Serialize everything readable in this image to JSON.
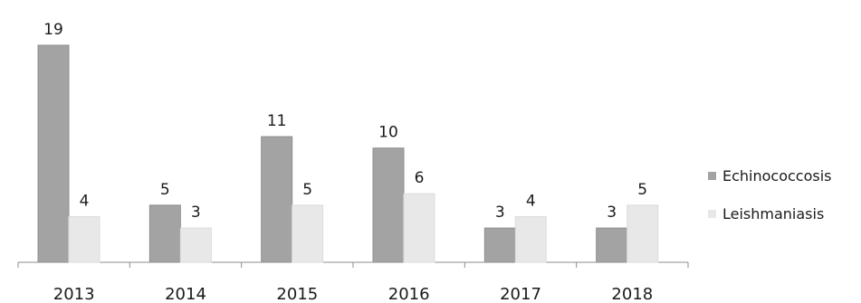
{
  "chart_data": {
    "type": "bar",
    "title": "",
    "xlabel": "",
    "ylabel": "",
    "categories": [
      "2013",
      "2014",
      "2015",
      "2016",
      "2017",
      "2018"
    ],
    "series": [
      {
        "name": "Echinococcosis",
        "values": [
          19,
          5,
          11,
          10,
          3,
          3
        ],
        "color": "#a3a3a3"
      },
      {
        "name": "Leishmaniasis",
        "values": [
          4,
          3,
          5,
          6,
          4,
          5
        ],
        "color": "#e8e8e8"
      }
    ],
    "ylim": [
      0,
      19
    ],
    "grid": false,
    "data_labels": true,
    "legend": "right"
  }
}
